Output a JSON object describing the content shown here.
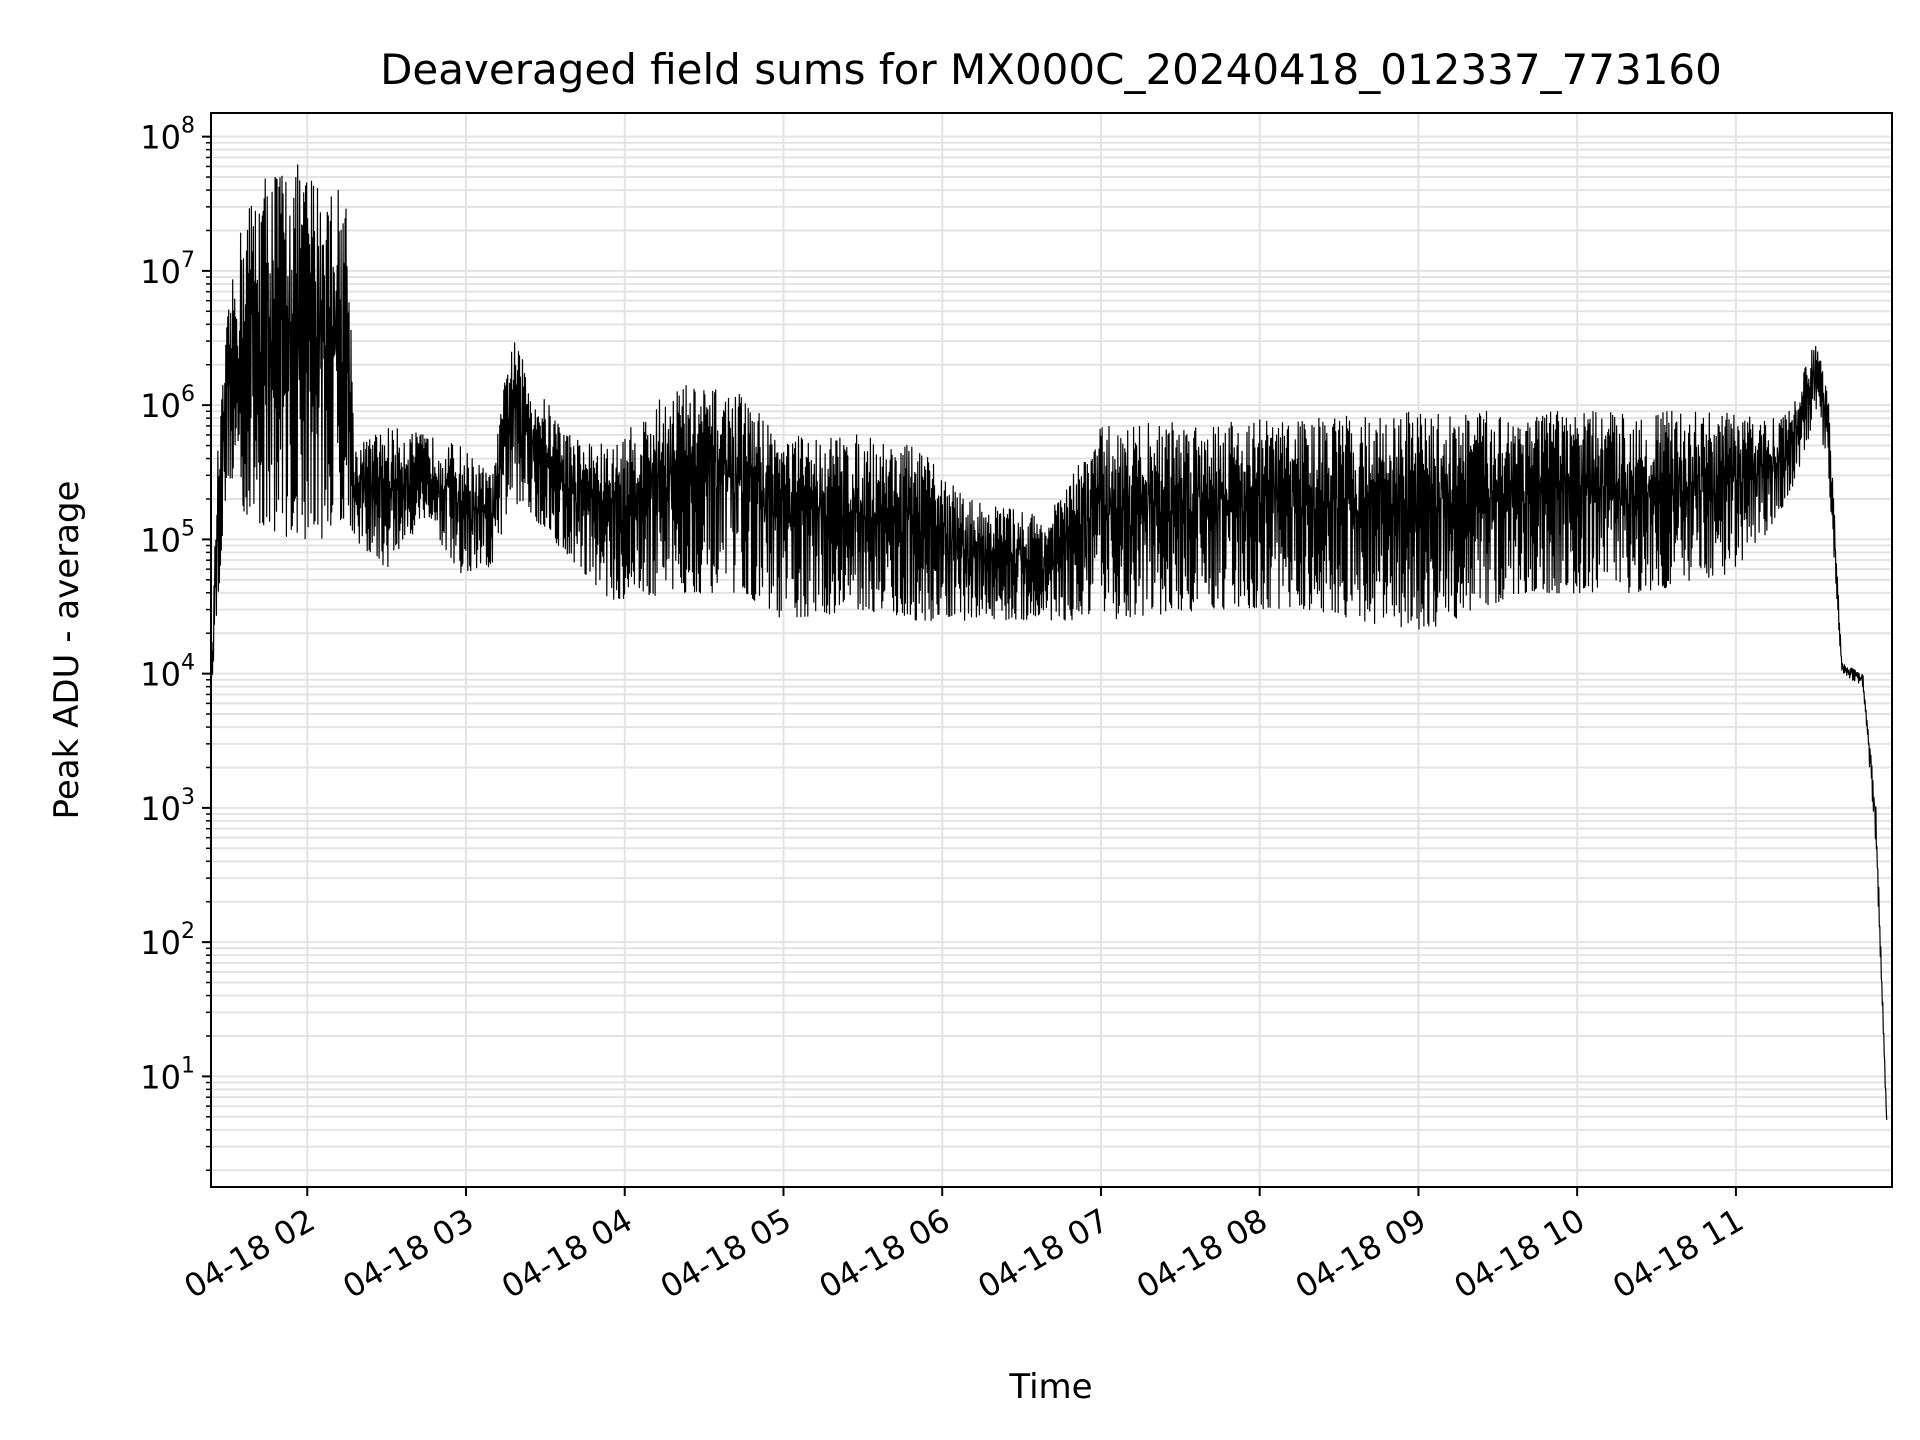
{
  "chart_data": {
    "type": "line",
    "title": "Deaveraged field sums for MX000C_20240418_012337_773160",
    "xlabel": "Time",
    "ylabel": "Peak ADU - average",
    "yscale": "log",
    "ylim": [
      1.5,
      150000000
    ],
    "xlim": [
      "2024-04-18T01:23:37",
      "2024-04-18T11:59:00"
    ],
    "grid": true,
    "line_color": "#000000",
    "grid_color": "#e3e3e3",
    "x_ticks": [
      {
        "label": "04-18 02",
        "t": "2024-04-18T02:00:00"
      },
      {
        "label": "04-18 03",
        "t": "2024-04-18T03:00:00"
      },
      {
        "label": "04-18 04",
        "t": "2024-04-18T04:00:00"
      },
      {
        "label": "04-18 05",
        "t": "2024-04-18T05:00:00"
      },
      {
        "label": "04-18 06",
        "t": "2024-04-18T06:00:00"
      },
      {
        "label": "04-18 07",
        "t": "2024-04-18T07:00:00"
      },
      {
        "label": "04-18 08",
        "t": "2024-04-18T08:00:00"
      },
      {
        "label": "04-18 09",
        "t": "2024-04-18T09:00:00"
      },
      {
        "label": "04-18 10",
        "t": "2024-04-18T10:00:00"
      },
      {
        "label": "04-18 11",
        "t": "2024-04-18T11:00:00"
      }
    ],
    "y_ticks": [
      {
        "base": "10",
        "exp": "1",
        "value": 10
      },
      {
        "base": "10",
        "exp": "2",
        "value": 100
      },
      {
        "base": "10",
        "exp": "3",
        "value": 1000
      },
      {
        "base": "10",
        "exp": "4",
        "value": 10000
      },
      {
        "base": "10",
        "exp": "5",
        "value": 100000
      },
      {
        "base": "10",
        "exp": "6",
        "value": 1000000
      },
      {
        "base": "10",
        "exp": "7",
        "value": 10000000
      },
      {
        "base": "10",
        "exp": "8",
        "value": 100000000
      }
    ],
    "series": [
      {
        "envelope": [
          {
            "t": "2024-04-18T01:23:37",
            "low": 7000,
            "high": 8000
          },
          {
            "t": "2024-04-18T01:26:00",
            "low": 30000,
            "high": 400000
          },
          {
            "t": "2024-04-18T01:30:00",
            "low": 300000,
            "high": 5000000
          },
          {
            "t": "2024-04-18T01:36:00",
            "low": 150000,
            "high": 30000000
          },
          {
            "t": "2024-04-18T01:45:00",
            "low": 120000,
            "high": 60000000
          },
          {
            "t": "2024-04-18T01:55:00",
            "low": 100000,
            "high": 65000000
          },
          {
            "t": "2024-04-18T02:05:00",
            "low": 100000,
            "high": 50000000
          },
          {
            "t": "2024-04-18T02:15:00",
            "low": 150000,
            "high": 40000000
          },
          {
            "t": "2024-04-18T02:18:00",
            "low": 100000,
            "high": 500000
          },
          {
            "t": "2024-04-18T02:30:00",
            "low": 60000,
            "high": 700000
          },
          {
            "t": "2024-04-18T02:45:00",
            "low": 150000,
            "high": 600000
          },
          {
            "t": "2024-04-18T02:58:00",
            "low": 50000,
            "high": 500000
          },
          {
            "t": "2024-04-18T03:10:00",
            "low": 60000,
            "high": 300000
          },
          {
            "t": "2024-04-18T03:17:00",
            "low": 200000,
            "high": 3500000
          },
          {
            "t": "2024-04-18T03:25:00",
            "low": 150000,
            "high": 1500000
          },
          {
            "t": "2024-04-18T03:40:00",
            "low": 70000,
            "high": 600000
          },
          {
            "t": "2024-04-18T03:55:00",
            "low": 35000,
            "high": 500000
          },
          {
            "t": "2024-04-18T04:20:00",
            "low": 40000,
            "high": 1500000
          },
          {
            "t": "2024-04-18T04:45:00",
            "low": 40000,
            "high": 1200000
          },
          {
            "t": "2024-04-18T05:00:00",
            "low": 25000,
            "high": 600000
          },
          {
            "t": "2024-04-18T05:30:00",
            "low": 30000,
            "high": 600000
          },
          {
            "t": "2024-04-18T05:50:00",
            "low": 25000,
            "high": 500000
          },
          {
            "t": "2024-04-18T06:10:00",
            "low": 25000,
            "high": 200000
          },
          {
            "t": "2024-04-18T06:40:00",
            "low": 25000,
            "high": 150000
          },
          {
            "t": "2024-04-18T07:00:00",
            "low": 25000,
            "high": 700000
          },
          {
            "t": "2024-04-18T07:40:00",
            "low": 30000,
            "high": 800000
          },
          {
            "t": "2024-04-18T08:20:00",
            "low": 30000,
            "high": 800000
          },
          {
            "t": "2024-04-18T09:00:00",
            "low": 20000,
            "high": 900000
          },
          {
            "t": "2024-04-18T09:40:00",
            "low": 40000,
            "high": 900000
          },
          {
            "t": "2024-04-18T10:20:00",
            "low": 40000,
            "high": 900000
          },
          {
            "t": "2024-04-18T10:55:00",
            "low": 50000,
            "high": 900000
          },
          {
            "t": "2024-04-18T11:10:00",
            "low": 100000,
            "high": 800000
          },
          {
            "t": "2024-04-18T11:20:00",
            "low": 200000,
            "high": 900000
          },
          {
            "t": "2024-04-18T11:30:00",
            "low": 800000,
            "high": 3000000
          },
          {
            "t": "2024-04-18T11:35:00",
            "low": 300000,
            "high": 1500000
          },
          {
            "t": "2024-04-18T11:40:00",
            "low": 10000,
            "high": 12000
          },
          {
            "t": "2024-04-18T11:48:00",
            "low": 8000,
            "high": 10000
          },
          {
            "t": "2024-04-18T11:53:00",
            "low": 500,
            "high": 1000
          },
          {
            "t": "2024-04-18T11:57:00",
            "low": 4,
            "high": 5
          }
        ]
      }
    ]
  }
}
